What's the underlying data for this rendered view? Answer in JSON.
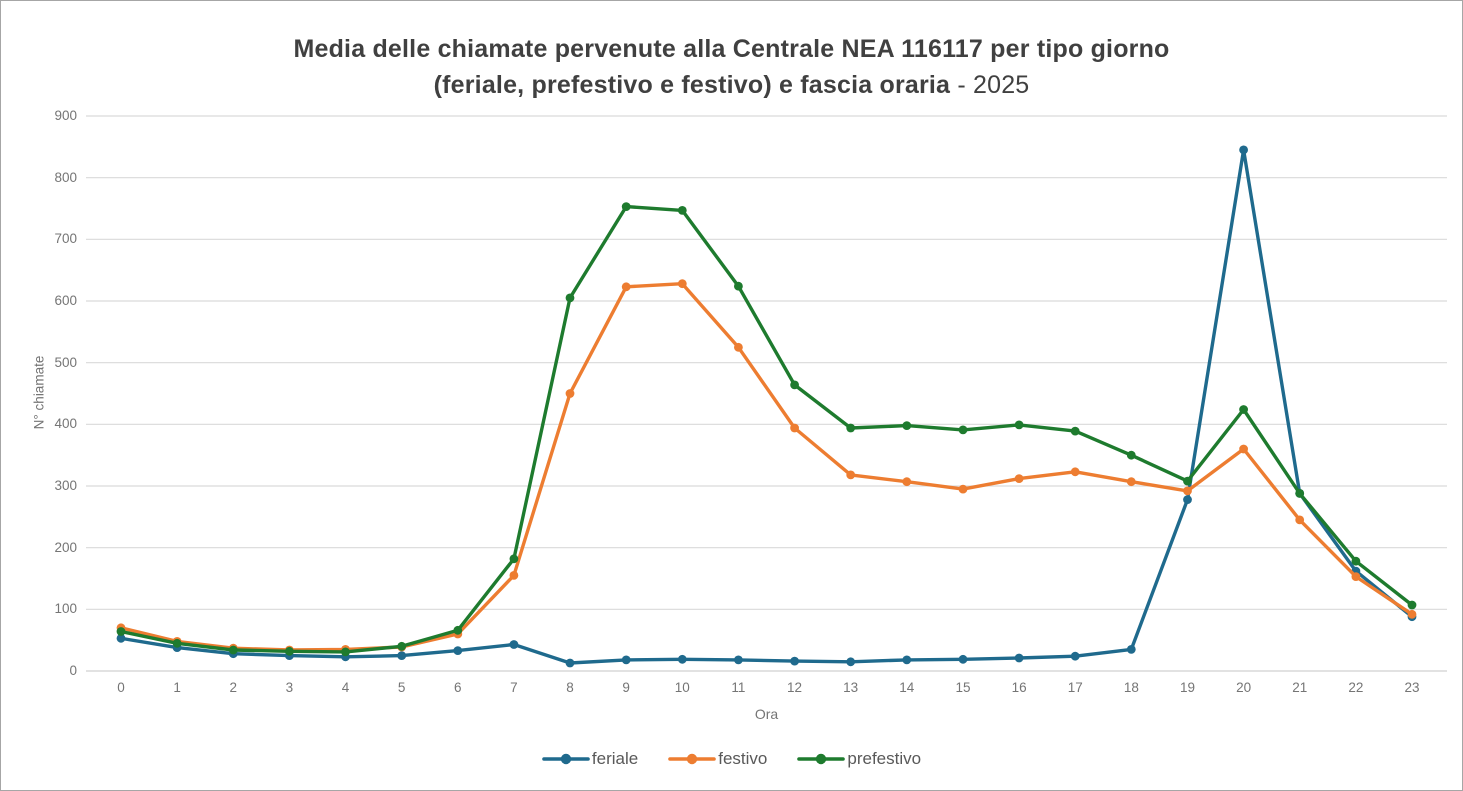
{
  "title": {
    "line1": "Media delle chiamate pervenute alla Centrale NEA 116117 per tipo giorno",
    "line2_bold": "(feriale, prefestivo e festivo) e fascia oraria",
    "line2_suffix": " - 2025"
  },
  "axes": {
    "xlabel": "Ora",
    "ylabel": "N° chiamate"
  },
  "chart_data": {
    "type": "line",
    "title": "Media delle chiamate pervenute alla Centrale NEA 116117 per tipo giorno (feriale, prefestivo e festivo) e fascia oraria - 2025",
    "xlabel": "Ora",
    "ylabel": "N° chiamate",
    "x": [
      0,
      1,
      2,
      3,
      4,
      5,
      6,
      7,
      8,
      9,
      10,
      11,
      12,
      13,
      14,
      15,
      16,
      17,
      18,
      19,
      20,
      21,
      22,
      23
    ],
    "ylim": [
      0,
      900
    ],
    "yticks": [
      0,
      100,
      200,
      300,
      400,
      500,
      600,
      700,
      800,
      900
    ],
    "grid": true,
    "legend_position": "bottom",
    "series": [
      {
        "name": "feriale",
        "color": "#1F6A8D",
        "values": [
          53,
          38,
          28,
          25,
          23,
          25,
          33,
          43,
          13,
          18,
          19,
          18,
          16,
          15,
          18,
          19,
          21,
          24,
          35,
          278,
          845,
          288,
          162,
          88
        ]
      },
      {
        "name": "festivo",
        "color": "#ED7D31",
        "values": [
          70,
          48,
          37,
          34,
          35,
          39,
          60,
          155,
          450,
          623,
          628,
          525,
          394,
          318,
          307,
          295,
          312,
          323,
          307,
          292,
          360,
          245,
          153,
          92
        ]
      },
      {
        "name": "prefestivo",
        "color": "#1E7B2E",
        "values": [
          64,
          45,
          34,
          32,
          31,
          40,
          66,
          182,
          605,
          753,
          747,
          624,
          464,
          394,
          398,
          391,
          399,
          389,
          350,
          308,
          424,
          288,
          178,
          107
        ]
      }
    ]
  },
  "style_colors": {
    "grid": "#D9D9D9",
    "tick_label": "#757575",
    "title": "#404040",
    "legend_label": "#595959"
  }
}
